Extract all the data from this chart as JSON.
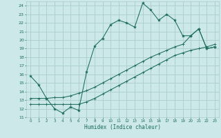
{
  "xlabel": "Humidex (Indice chaleur)",
  "bg_color": "#cce8e8",
  "line_color": "#1a6b5a",
  "grid_color": "#aacccc",
  "xlim": [
    -0.5,
    23.5
  ],
  "ylim": [
    11,
    24.5
  ],
  "xticks": [
    0,
    1,
    2,
    3,
    4,
    5,
    6,
    7,
    8,
    9,
    10,
    11,
    12,
    13,
    14,
    15,
    16,
    17,
    18,
    19,
    20,
    21,
    22,
    23
  ],
  "yticks": [
    11,
    12,
    13,
    14,
    15,
    16,
    17,
    18,
    19,
    20,
    21,
    22,
    23,
    24
  ],
  "line1_x": [
    0,
    1,
    2,
    3,
    4,
    5,
    6,
    7,
    8,
    9,
    10,
    11,
    12,
    13,
    14,
    15,
    16,
    17,
    18,
    19,
    20,
    21,
    22,
    23
  ],
  "line1_y": [
    15.8,
    14.8,
    13.2,
    12.0,
    11.5,
    12.2,
    11.8,
    16.3,
    19.3,
    20.2,
    21.8,
    22.3,
    22.0,
    21.5,
    24.3,
    23.5,
    22.3,
    23.0,
    22.3,
    20.5,
    20.5,
    21.3,
    19.0,
    19.2
  ],
  "line2_x": [
    0,
    1,
    2,
    3,
    4,
    5,
    6,
    7,
    8,
    9,
    10,
    11,
    12,
    13,
    14,
    15,
    16,
    17,
    18,
    19,
    20,
    21,
    22,
    23
  ],
  "line2_y": [
    13.2,
    13.2,
    13.2,
    13.3,
    13.3,
    13.5,
    13.8,
    14.1,
    14.5,
    15.0,
    15.5,
    16.0,
    16.5,
    17.0,
    17.5,
    18.0,
    18.4,
    18.8,
    19.2,
    19.5,
    20.5,
    21.3,
    19.0,
    19.2
  ],
  "line3_x": [
    0,
    1,
    2,
    3,
    4,
    5,
    6,
    7,
    8,
    9,
    10,
    11,
    12,
    13,
    14,
    15,
    16,
    17,
    18,
    19,
    20,
    21,
    22,
    23
  ],
  "line3_y": [
    12.5,
    12.5,
    12.5,
    12.5,
    12.5,
    12.5,
    12.5,
    12.8,
    13.2,
    13.7,
    14.2,
    14.7,
    15.2,
    15.7,
    16.2,
    16.7,
    17.2,
    17.7,
    18.2,
    18.5,
    18.8,
    19.0,
    19.2,
    19.5
  ]
}
